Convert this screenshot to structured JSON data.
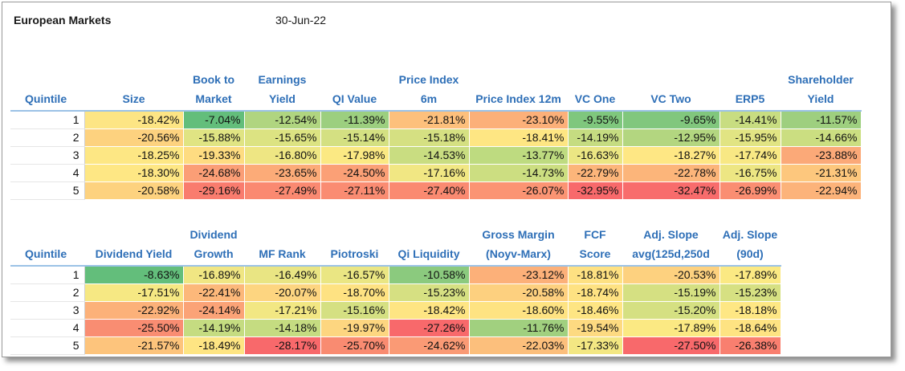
{
  "header": {
    "title": "European Markets",
    "date": "30-Jun-22"
  },
  "table1": {
    "headers": [
      "Quintile",
      "Size",
      "Book to Market",
      "Earnings Yield",
      "QI Value",
      "Price Index 6m",
      "Price Index 12m",
      "VC One",
      "VC Two",
      "ERP5",
      "Shareholder Yield"
    ],
    "rows": [
      {
        "q": "1",
        "cells": [
          {
            "v": "-18.42%",
            "c": "#fde584"
          },
          {
            "v": "-7.04%",
            "c": "#63be7b"
          },
          {
            "v": "-12.54%",
            "c": "#b0d580"
          },
          {
            "v": "-11.39%",
            "c": "#9ccf7f"
          },
          {
            "v": "-21.81%",
            "c": "#fdc07c"
          },
          {
            "v": "-23.10%",
            "c": "#fcb079"
          },
          {
            "v": "-9.55%",
            "c": "#7fc77d"
          },
          {
            "v": "-9.65%",
            "c": "#81c77d"
          },
          {
            "v": "-14.41%",
            "c": "#c8dd81"
          },
          {
            "v": "-11.57%",
            "c": "#9ecf7f"
          }
        ]
      },
      {
        "q": "2",
        "cells": [
          {
            "v": "-20.56%",
            "c": "#fdd27f"
          },
          {
            "v": "-15.88%",
            "c": "#e0e483"
          },
          {
            "v": "-15.65%",
            "c": "#dce382"
          },
          {
            "v": "-15.14%",
            "c": "#d4e082"
          },
          {
            "v": "-15.18%",
            "c": "#d5e082"
          },
          {
            "v": "-18.41%",
            "c": "#fee683"
          },
          {
            "v": "-14.19%",
            "c": "#c5dc81"
          },
          {
            "v": "-12.95%",
            "c": "#b3d680"
          },
          {
            "v": "-15.95%",
            "c": "#e1e483"
          },
          {
            "v": "-14.66%",
            "c": "#cbde81"
          }
        ]
      },
      {
        "q": "3",
        "cells": [
          {
            "v": "-18.25%",
            "c": "#fde784"
          },
          {
            "v": "-19.33%",
            "c": "#fedc81"
          },
          {
            "v": "-16.80%",
            "c": "#eee683"
          },
          {
            "v": "-17.98%",
            "c": "#fbe983"
          },
          {
            "v": "-14.53%",
            "c": "#c9dd81"
          },
          {
            "v": "-13.77%",
            "c": "#bedb80"
          },
          {
            "v": "-16.63%",
            "c": "#ebe683"
          },
          {
            "v": "-18.27%",
            "c": "#fee784"
          },
          {
            "v": "-17.74%",
            "c": "#f8e884"
          },
          {
            "v": "-23.88%",
            "c": "#fba978"
          }
        ]
      },
      {
        "q": "4",
        "cells": [
          {
            "v": "-18.30%",
            "c": "#fee784"
          },
          {
            "v": "-24.68%",
            "c": "#fb9e76"
          },
          {
            "v": "-23.65%",
            "c": "#fcab78"
          },
          {
            "v": "-24.50%",
            "c": "#fba076"
          },
          {
            "v": "-17.16%",
            "c": "#f1e783"
          },
          {
            "v": "-14.73%",
            "c": "#ccde81"
          },
          {
            "v": "-22.79%",
            "c": "#fcb57a"
          },
          {
            "v": "-22.78%",
            "c": "#fcb57a"
          },
          {
            "v": "-16.75%",
            "c": "#ede683"
          },
          {
            "v": "-21.31%",
            "c": "#fdc77d"
          }
        ]
      },
      {
        "q": "5",
        "cells": [
          {
            "v": "-20.58%",
            "c": "#fdd27f"
          },
          {
            "v": "-29.16%",
            "c": "#f97c6e"
          },
          {
            "v": "-27.49%",
            "c": "#fa8971"
          },
          {
            "v": "-27.11%",
            "c": "#fa8c72"
          },
          {
            "v": "-27.40%",
            "c": "#fa8a71"
          },
          {
            "v": "-26.07%",
            "c": "#fb9473"
          },
          {
            "v": "-32.95%",
            "c": "#f8696b"
          },
          {
            "v": "-32.47%",
            "c": "#f86c6c"
          },
          {
            "v": "-26.99%",
            "c": "#fa8e72"
          },
          {
            "v": "-22.94%",
            "c": "#fcb37a"
          }
        ]
      }
    ]
  },
  "table2": {
    "headers": [
      "Quintile",
      "Dividend Yield",
      "Dividend Growth",
      "MF Rank",
      "Piotroski",
      "Qi Liquidity",
      "Gross Margin (Noyv-Marx)",
      "FCF Score",
      "Adj. Slope avg(125d,250d",
      "Adj. Slope (90d)"
    ],
    "rows": [
      {
        "q": "1",
        "cells": [
          {
            "v": "-8.63%",
            "c": "#63be7b"
          },
          {
            "v": "-16.89%",
            "c": "#f0e683"
          },
          {
            "v": "-16.49%",
            "c": "#e9e583"
          },
          {
            "v": "-16.57%",
            "c": "#eae683"
          },
          {
            "v": "-10.58%",
            "c": "#8bca7e"
          },
          {
            "v": "-23.12%",
            "c": "#fcb079"
          },
          {
            "v": "-18.81%",
            "c": "#fee182"
          },
          {
            "v": "-20.53%",
            "c": "#fdd17f"
          },
          {
            "v": "-17.89%",
            "c": "#fbe983"
          }
        ]
      },
      {
        "q": "2",
        "cells": [
          {
            "v": "-17.51%",
            "c": "#f6e883"
          },
          {
            "v": "-22.41%",
            "c": "#fcb87a"
          },
          {
            "v": "-20.07%",
            "c": "#fdd580"
          },
          {
            "v": "-18.70%",
            "c": "#fee282"
          },
          {
            "v": "-15.23%",
            "c": "#d6e082"
          },
          {
            "v": "-20.58%",
            "c": "#fdd07f"
          },
          {
            "v": "-18.74%",
            "c": "#fee282"
          },
          {
            "v": "-15.19%",
            "c": "#d5e082"
          },
          {
            "v": "-15.23%",
            "c": "#d6e082"
          }
        ]
      },
      {
        "q": "3",
        "cells": [
          {
            "v": "-22.92%",
            "c": "#fcb179"
          },
          {
            "v": "-24.14%",
            "c": "#fba377"
          },
          {
            "v": "-17.21%",
            "c": "#f2e783"
          },
          {
            "v": "-15.16%",
            "c": "#d5e082"
          },
          {
            "v": "-18.42%",
            "c": "#fee583"
          },
          {
            "v": "-18.60%",
            "c": "#fee382"
          },
          {
            "v": "-18.46%",
            "c": "#fee583"
          },
          {
            "v": "-15.20%",
            "c": "#d5e082"
          },
          {
            "v": "-18.18%",
            "c": "#fee784"
          }
        ]
      },
      {
        "q": "4",
        "cells": [
          {
            "v": "-25.50%",
            "c": "#f98d72"
          },
          {
            "v": "-14.19%",
            "c": "#c5dc81"
          },
          {
            "v": "-14.18%",
            "c": "#c5dc81"
          },
          {
            "v": "-19.97%",
            "c": "#fdd680"
          },
          {
            "v": "-27.26%",
            "c": "#f8696b"
          },
          {
            "v": "-11.76%",
            "c": "#a1d07f"
          },
          {
            "v": "-19.54%",
            "c": "#fdda81"
          },
          {
            "v": "-17.89%",
            "c": "#fbe983"
          },
          {
            "v": "-18.64%",
            "c": "#fee382"
          }
        ]
      },
      {
        "q": "5",
        "cells": [
          {
            "v": "-21.57%",
            "c": "#fdc47c"
          },
          {
            "v": "-18.49%",
            "c": "#fee583"
          },
          {
            "v": "-28.17%",
            "c": "#f8696b"
          },
          {
            "v": "-25.70%",
            "c": "#f98b71"
          },
          {
            "v": "-24.62%",
            "c": "#fa9a75"
          },
          {
            "v": "-22.03%",
            "c": "#fcbf7c"
          },
          {
            "v": "-17.33%",
            "c": "#f3e783"
          },
          {
            "v": "-27.50%",
            "c": "#f8696b"
          },
          {
            "v": "-26.38%",
            "c": "#f97f6f"
          }
        ]
      }
    ]
  }
}
